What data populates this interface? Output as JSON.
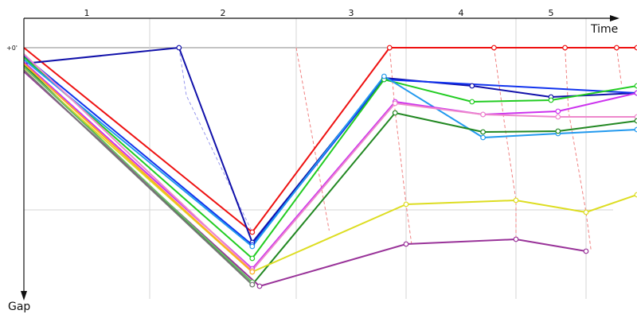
{
  "chart_data": {
    "type": "line",
    "title": "",
    "xlabel": "Time",
    "ylabel": "Gap",
    "y_tick_label": "+0'",
    "lap_labels": [
      "1",
      "2",
      "3",
      "4",
      "5"
    ],
    "grid": true,
    "leader_axis_color": "#888888",
    "connector_colors": [
      "#9999ee",
      "#f08080"
    ],
    "series": [
      {
        "color": "#ee1111",
        "points": [
          [
            0,
            0
          ],
          [
            1.7,
            232
          ],
          [
            2.85,
            0
          ],
          [
            3.8,
            0
          ],
          [
            4.7,
            0
          ],
          [
            5.6,
            0
          ],
          [
            6,
            0
          ]
        ]
      },
      {
        "color": "#1111aa",
        "points": [
          [
            0,
            20
          ],
          [
            1.2,
            0
          ],
          [
            1.7,
            245
          ],
          [
            2.8,
            38
          ],
          [
            3.6,
            48
          ],
          [
            4.5,
            62
          ],
          [
            6,
            57
          ]
        ]
      },
      {
        "color": "#1133ee",
        "points": [
          [
            0,
            10
          ],
          [
            1.7,
            248
          ],
          [
            2.8,
            40
          ],
          [
            6,
            57
          ]
        ]
      },
      {
        "color": "#22cc22",
        "points": [
          [
            0,
            12
          ],
          [
            1.7,
            265
          ],
          [
            2.8,
            40
          ],
          [
            3.6,
            68
          ],
          [
            4.5,
            66
          ],
          [
            6,
            48
          ]
        ]
      },
      {
        "color": "#2299ee",
        "points": [
          [
            0,
            15
          ],
          [
            1.7,
            250
          ],
          [
            2.8,
            36
          ],
          [
            3.7,
            113
          ],
          [
            4.6,
            108
          ],
          [
            6,
            103
          ]
        ]
      },
      {
        "color": "#cc33ee",
        "points": [
          [
            0,
            18
          ],
          [
            1.7,
            278
          ],
          [
            2.9,
            68
          ],
          [
            3.7,
            84
          ],
          [
            4.6,
            80
          ],
          [
            6,
            57
          ]
        ]
      },
      {
        "color": "#ee88cc",
        "points": [
          [
            0,
            8
          ],
          [
            1.7,
            280
          ],
          [
            2.9,
            70
          ],
          [
            3.7,
            84
          ],
          [
            4.6,
            87
          ],
          [
            6,
            87
          ]
        ]
      },
      {
        "color": "#228822",
        "points": [
          [
            0,
            22
          ],
          [
            1.7,
            298
          ],
          [
            2.9,
            82
          ],
          [
            3.7,
            106
          ],
          [
            4.6,
            105
          ],
          [
            6,
            92
          ]
        ]
      },
      {
        "color": "#dddd22",
        "points": [
          [
            0,
            25
          ],
          [
            1.7,
            282
          ],
          [
            3,
            197
          ],
          [
            4,
            192
          ],
          [
            5,
            207
          ],
          [
            6,
            185
          ]
        ]
      },
      {
        "color": "#ffaa22",
        "points": [
          [
            0,
            20
          ],
          [
            1.7,
            282
          ]
        ]
      },
      {
        "color": "#993399",
        "points": [
          [
            0,
            30
          ],
          [
            1.75,
            300
          ],
          [
            3,
            247
          ],
          [
            4,
            241
          ],
          [
            5,
            256
          ]
        ]
      },
      {
        "color": "#66bb66",
        "points": [
          [
            0,
            24
          ],
          [
            1.7,
            295
          ]
        ]
      },
      {
        "color": "#777777",
        "points": [
          [
            0,
            28
          ],
          [
            1.7,
            298
          ]
        ]
      }
    ]
  }
}
